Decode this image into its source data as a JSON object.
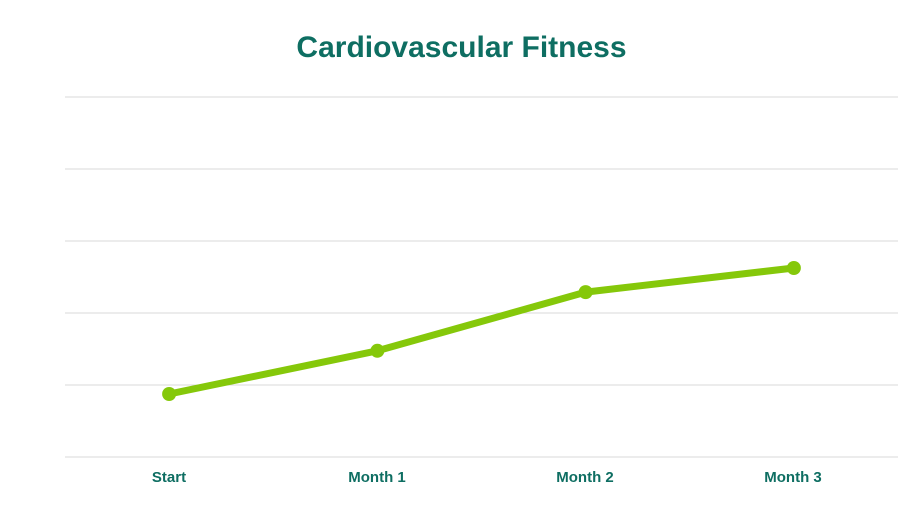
{
  "chart_data": {
    "type": "line",
    "title": "Cardiovascular Fitness",
    "categories": [
      "Start",
      "Month 1",
      "Month 2",
      "Month 3"
    ],
    "series": [
      {
        "name": "Cardiovascular Fitness",
        "values": [
          17.5,
          29.5,
          45.8,
          52.5
        ]
      }
    ],
    "xlabel": "",
    "ylabel": "",
    "ylim": [
      0,
      100
    ],
    "grid_step": 20,
    "grid": true,
    "y_tick_labels_visible": false,
    "legend_position": "none",
    "colors": {
      "line": "#85c80a",
      "point": "#85c80a",
      "gridline": "#d9d9d9",
      "title_text": "#0e6e62",
      "axis_label_text": "#0e6e62",
      "background": "#ffffff"
    }
  }
}
